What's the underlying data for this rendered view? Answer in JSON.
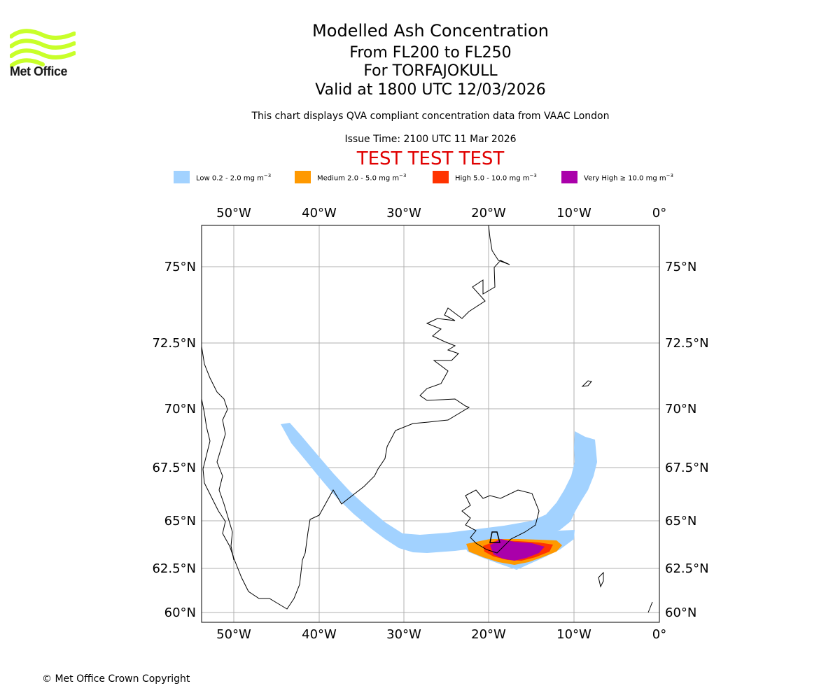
{
  "brand": {
    "name": "Met Office",
    "logo_color": "#c8ff2a"
  },
  "titles": {
    "main": "Modelled Ash Concentration",
    "levels": "From FL200 to FL250",
    "volcano": "For TORFAJOKULL",
    "valid": "Valid at 1800 UTC 12/03/2026",
    "subtitle": "This chart displays QVA compliant concentration data from VAAC London",
    "issue_time": "Issue Time: 2100 UTC 11 Mar 2026",
    "test_banner": "TEST TEST TEST"
  },
  "legend": [
    {
      "label": "Low 0.2 - 2.0 mg m",
      "color": "#a2d2ff"
    },
    {
      "label": "Medium 2.0 - 5.0 mg m",
      "color": "#ff9900"
    },
    {
      "label": "High 5.0 - 10.0 mg m",
      "color": "#ff3300"
    },
    {
      "label": "Very High ≥ 10.0 mg m",
      "color": "#aa00aa"
    }
  ],
  "legend_unit_exponent": "−3",
  "map": {
    "lon_labels": [
      "50°W",
      "40°W",
      "30°W",
      "20°W",
      "10°W",
      "0°"
    ],
    "lat_labels": [
      "75°N",
      "72.5°N",
      "70°N",
      "67.5°N",
      "65°N",
      "62.5°N",
      "60°N"
    ],
    "lon_range": [
      -54,
      0
    ],
    "lat_range": [
      59.5,
      76.5
    ],
    "gridline_color": "#b0b0b0",
    "coastline_color": "#000000"
  },
  "copyright": "© Met Office Crown Copyright"
}
